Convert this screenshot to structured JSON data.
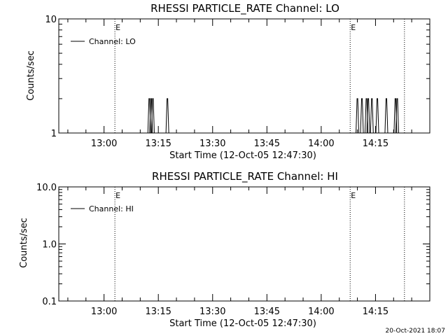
{
  "chart_data": [
    {
      "type": "line",
      "title": "RHESSI PARTICLE_RATE Channel: LO",
      "xlabel": "Start Time (12-Oct-05 12:47:30)",
      "ylabel": "Counts/sec",
      "y_scale": "log",
      "ylim": [
        1,
        10
      ],
      "yticks": [
        1,
        10
      ],
      "ytick_labels": [
        "1",
        "10"
      ],
      "xlim": [
        "12:47:30",
        "14:30:00"
      ],
      "xticks": [
        "13:00",
        "13:15",
        "13:30",
        "13:45",
        "14:00",
        "14:15"
      ],
      "legend": {
        "placement": "top-left",
        "entries": [
          "Channel: LO"
        ]
      },
      "series": [
        {
          "name": "Channel: LO",
          "x": [
            "13:12:30",
            "13:13:00",
            "13:13:30",
            "13:17:30",
            "14:10:00",
            "14:11:15",
            "14:12:30",
            "14:13:00",
            "14:14:00",
            "14:15:30",
            "14:18:00",
            "14:20:30",
            "14:21:00"
          ],
          "values": [
            2,
            2,
            2,
            2,
            2,
            2,
            2,
            2,
            2,
            2,
            2,
            2,
            2
          ]
        }
      ],
      "markers": [
        {
          "type": "dotted-vline",
          "x": "13:03:00",
          "label": "E"
        },
        {
          "type": "dotted-vline",
          "x": "14:08:00",
          "label": "E"
        },
        {
          "type": "dotted-vline",
          "x": "14:23:00",
          "label": ""
        }
      ],
      "grid": false
    },
    {
      "type": "line",
      "title": "RHESSI PARTICLE_RATE Channel: HI",
      "xlabel": "Start Time (12-Oct-05 12:47:30)",
      "ylabel": "Counts/sec",
      "y_scale": "log",
      "ylim": [
        0.1,
        10
      ],
      "yticks": [
        0.1,
        1,
        10
      ],
      "ytick_labels": [
        "0.1",
        "1.0",
        "10.0"
      ],
      "xlim": [
        "12:47:30",
        "14:30:00"
      ],
      "xticks": [
        "13:00",
        "13:15",
        "13:30",
        "13:45",
        "14:00",
        "14:15"
      ],
      "legend": {
        "placement": "top-left",
        "entries": [
          "Channel: HI"
        ]
      },
      "series": [
        {
          "name": "Channel: HI",
          "x": [],
          "values": []
        }
      ],
      "markers": [
        {
          "type": "dotted-vline",
          "x": "13:03:00",
          "label": "E"
        },
        {
          "type": "dotted-vline",
          "x": "14:08:00",
          "label": "E"
        },
        {
          "type": "dotted-vline",
          "x": "14:23:00",
          "label": ""
        }
      ],
      "grid": false
    }
  ],
  "footer": {
    "timestamp": "20-Oct-2021 18:07"
  }
}
